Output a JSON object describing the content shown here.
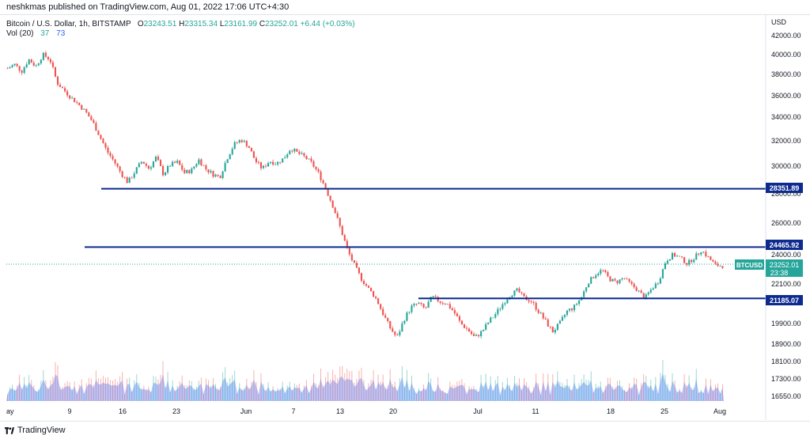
{
  "header": {
    "publisher": "neshkmas published on TradingView.com, Aug 01, 2022 17:06 UTC+4:30"
  },
  "legend": {
    "symbol": "Bitcoin / U.S. Dollar, 1h, BITSTAMP",
    "o_label": "O",
    "o_value": "23243.51",
    "h_label": "H",
    "h_value": "23315.34",
    "l_label": "L",
    "l_value": "23161.99",
    "c_label": "C",
    "c_value": "23252.01",
    "change": "+6.44 (+0.03%)"
  },
  "volume_legend": {
    "label": "Vol (20)",
    "value1": "37",
    "value2": "73"
  },
  "price_axis": {
    "currency": "USD",
    "ticks": [
      "42000.00",
      "40000.00",
      "38000.00",
      "36000.00",
      "34000.00",
      "32000.00",
      "30000.00",
      "28000.00",
      "26000.00",
      "24000.00",
      "22100.00",
      "21000.00",
      "19900.00",
      "18900.00",
      "18100.00",
      "17300.00",
      "16550.00"
    ]
  },
  "time_axis": {
    "ticks": [
      "ay",
      "9",
      "16",
      "23",
      "Jun",
      "7",
      "13",
      "20",
      "Jul",
      "11",
      "18",
      "25",
      "Aug"
    ]
  },
  "levels": [
    {
      "label": "28351.89"
    },
    {
      "label": "24465.92"
    },
    {
      "label": "21185.07"
    }
  ],
  "current": {
    "symbol": "BTCUSD",
    "price": "23252.01",
    "countdown": "23:38"
  },
  "footer": {
    "brand": "TradingView"
  },
  "colors": {
    "up": "#26a69a",
    "down": "#ef5350",
    "level": "#0d2a8f",
    "volume": "#2962ff"
  },
  "chart_data": {
    "type": "line",
    "title": "Bitcoin / U.S. Dollar, 1h, BITSTAMP",
    "xlabel": "",
    "ylabel": "USD",
    "ylim": [
      16300,
      43000
    ],
    "y_scale": "log",
    "x_ticks": [
      "ay",
      "9",
      "16",
      "23",
      "Jun",
      "7",
      "13",
      "20",
      "Jul",
      "11",
      "18",
      "25",
      "Aug"
    ],
    "series": [
      {
        "values": [
          38600,
          39000,
          38300,
          39500,
          38800,
          40000,
          39500,
          37200,
          36500,
          35800,
          35200,
          34500,
          33600,
          32400,
          31200,
          30400,
          29500,
          28800,
          29600,
          30400,
          29800,
          30700,
          29400,
          30100,
          30300,
          29500,
          29700,
          30500,
          29800,
          29400,
          29200,
          30600,
          31700,
          32100,
          31600,
          30400,
          29800,
          30400,
          30200,
          30600,
          31400,
          31000,
          30700,
          30200,
          29400,
          28300,
          27100,
          25700,
          24300,
          23300,
          22400,
          21800,
          21200,
          20400,
          19700,
          19200,
          20100,
          20700,
          20900,
          20600,
          21300,
          21000,
          20900,
          20500,
          19900,
          19600,
          19200,
          19500,
          20000,
          20400,
          20900,
          21400,
          21700,
          21200,
          21000,
          20500,
          20000,
          19500,
          19900,
          20500,
          20700,
          21200,
          22200,
          22700,
          23000,
          22400,
          22200,
          22500,
          22100,
          21700,
          21200,
          21800,
          22300,
          23600,
          24000,
          23800,
          23400,
          23800,
          24300,
          23800,
          23300,
          23252
        ]
      }
    ],
    "horizontal_levels": [
      28351.89,
      24465.92,
      21185.07
    ]
  }
}
